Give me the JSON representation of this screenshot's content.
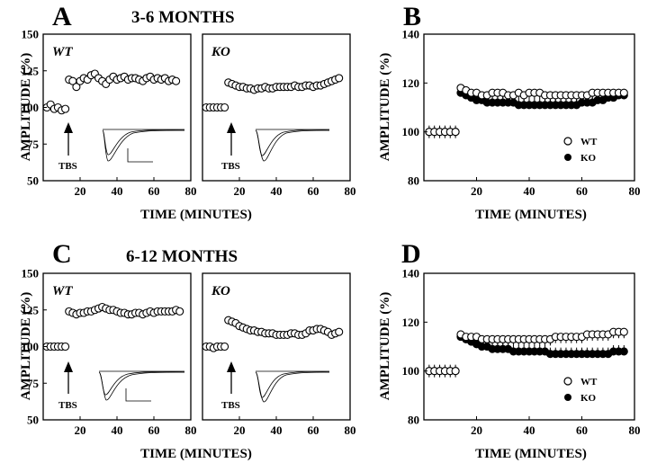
{
  "figure": {
    "panel_a": {
      "letter": "A",
      "title": "3-6 MONTHS"
    },
    "panel_b": {
      "letter": "B"
    },
    "panel_c": {
      "letter": "C",
      "title": "6-12 MONTHS"
    },
    "panel_d": {
      "letter": "D"
    },
    "genotype_labels": {
      "wt": "WT",
      "ko": "KO"
    },
    "stimulus_label": "TBS"
  },
  "chart_data": [
    {
      "id": "A-WT",
      "type": "scatter",
      "label": "WT",
      "xlabel": "TIME (MINUTES)",
      "ylabel": "AMPLITUDE (%)",
      "xlim": [
        0,
        80
      ],
      "ylim": [
        50,
        150
      ],
      "xticks": [
        20,
        40,
        60,
        80
      ],
      "yticks": [
        50,
        75,
        100,
        125,
        150
      ],
      "x": [
        2,
        4,
        6,
        8,
        10,
        12,
        14,
        16,
        18,
        20,
        22,
        24,
        26,
        28,
        30,
        32,
        34,
        36,
        38,
        40,
        42,
        44,
        46,
        48,
        50,
        52,
        54,
        56,
        58,
        60,
        62,
        64,
        66,
        68,
        70,
        72
      ],
      "y": [
        100,
        102,
        99,
        100,
        98,
        99,
        119,
        118,
        114,
        118,
        120,
        119,
        122,
        123,
        120,
        118,
        116,
        119,
        121,
        119,
        120,
        121,
        119,
        120,
        120,
        119,
        118,
        120,
        121,
        119,
        120,
        119,
        120,
        118,
        119,
        118
      ]
    },
    {
      "id": "A-KO",
      "type": "scatter",
      "label": "KO",
      "xlabel": "",
      "ylabel": "",
      "xlim": [
        0,
        80
      ],
      "ylim": [
        50,
        150
      ],
      "xticks": [
        20,
        40,
        60,
        80
      ],
      "yticks": [],
      "x": [
        2,
        4,
        6,
        8,
        10,
        12,
        14,
        16,
        18,
        20,
        22,
        24,
        26,
        28,
        30,
        32,
        34,
        36,
        38,
        40,
        42,
        44,
        46,
        48,
        50,
        52,
        54,
        56,
        58,
        60,
        62,
        64,
        66,
        68,
        70,
        72,
        74
      ],
      "y": [
        100,
        100,
        100,
        100,
        100,
        100,
        117,
        116,
        115,
        114,
        114,
        113,
        113,
        112,
        113,
        113,
        114,
        113,
        113,
        114,
        114,
        114,
        114,
        114,
        115,
        114,
        114,
        115,
        115,
        114,
        115,
        115,
        116,
        117,
        118,
        119,
        120
      ]
    },
    {
      "id": "B",
      "type": "scatter",
      "xlabel": "TIME (MINUTES)",
      "ylabel": "AMPLITUDE (%)",
      "xlim": [
        0,
        80
      ],
      "ylim": [
        80,
        140
      ],
      "xticks": [
        20,
        40,
        60,
        80
      ],
      "yticks": [
        80,
        100,
        120,
        140
      ],
      "series": [
        {
          "name": "KO",
          "marker": "filled",
          "x": [
            2,
            4,
            6,
            8,
            10,
            12,
            14,
            16,
            18,
            20,
            22,
            24,
            26,
            28,
            30,
            32,
            34,
            36,
            38,
            40,
            42,
            44,
            46,
            48,
            50,
            52,
            54,
            56,
            58,
            60,
            62,
            64,
            66,
            68,
            70,
            72,
            74,
            76
          ],
          "y": [
            100,
            100,
            100,
            100,
            100,
            100,
            116,
            115,
            114,
            113,
            113,
            112,
            112,
            112,
            112,
            112,
            112,
            111,
            111,
            111,
            111,
            111,
            111,
            111,
            111,
            111,
            111,
            111,
            111,
            112,
            112,
            112,
            113,
            113,
            114,
            114,
            115,
            115
          ]
        },
        {
          "name": "WT",
          "marker": "open",
          "x": [
            2,
            4,
            6,
            8,
            10,
            12,
            14,
            16,
            18,
            20,
            22,
            24,
            26,
            28,
            30,
            32,
            34,
            36,
            38,
            40,
            42,
            44,
            46,
            48,
            50,
            52,
            54,
            56,
            58,
            60,
            62,
            64,
            66,
            68,
            70,
            72,
            74,
            76
          ],
          "y": [
            100,
            100,
            100,
            100,
            100,
            100,
            118,
            117,
            116,
            116,
            115,
            115,
            116,
            116,
            116,
            115,
            115,
            116,
            115,
            116,
            116,
            116,
            115,
            115,
            115,
            115,
            115,
            115,
            115,
            115,
            115,
            116,
            116,
            116,
            116,
            116,
            116,
            116
          ]
        }
      ]
    },
    {
      "id": "C-WT",
      "type": "scatter",
      "label": "WT",
      "xlabel": "TIME (MINUTES)",
      "ylabel": "AMPLITUDE (%)",
      "xlim": [
        0,
        80
      ],
      "ylim": [
        50,
        150
      ],
      "xticks": [
        20,
        40,
        60,
        80
      ],
      "yticks": [
        50,
        75,
        100,
        125,
        150
      ],
      "x": [
        2,
        4,
        6,
        8,
        10,
        12,
        14,
        16,
        18,
        20,
        22,
        24,
        26,
        28,
        30,
        32,
        34,
        36,
        38,
        40,
        42,
        44,
        46,
        48,
        50,
        52,
        54,
        56,
        58,
        60,
        62,
        64,
        66,
        68,
        70,
        72,
        74
      ],
      "y": [
        100,
        100,
        100,
        100,
        100,
        100,
        124,
        123,
        122,
        123,
        123,
        124,
        124,
        125,
        126,
        127,
        126,
        125,
        125,
        124,
        123,
        123,
        122,
        122,
        123,
        123,
        122,
        123,
        124,
        123,
        124,
        124,
        124,
        124,
        124,
        125,
        124
      ]
    },
    {
      "id": "C-KO",
      "type": "scatter",
      "label": "KO",
      "xlabel": "",
      "ylabel": "",
      "xlim": [
        0,
        80
      ],
      "ylim": [
        50,
        150
      ],
      "xticks": [
        20,
        40,
        60,
        80
      ],
      "yticks": [],
      "x": [
        2,
        4,
        6,
        8,
        10,
        12,
        14,
        16,
        18,
        20,
        22,
        24,
        26,
        28,
        30,
        32,
        34,
        36,
        38,
        40,
        42,
        44,
        46,
        48,
        50,
        52,
        54,
        56,
        58,
        60,
        62,
        64,
        66,
        68,
        70,
        72,
        74
      ],
      "y": [
        100,
        100,
        99,
        100,
        100,
        100,
        118,
        117,
        116,
        114,
        113,
        112,
        111,
        111,
        110,
        110,
        109,
        109,
        109,
        108,
        108,
        108,
        108,
        109,
        109,
        108,
        108,
        109,
        111,
        111,
        112,
        112,
        111,
        110,
        108,
        109,
        110
      ]
    },
    {
      "id": "D",
      "type": "scatter",
      "xlabel": "TIME (MINUTES)",
      "ylabel": "AMPLITUDE (%)",
      "xlim": [
        0,
        80
      ],
      "ylim": [
        80,
        140
      ],
      "xticks": [
        20,
        40,
        60,
        80
      ],
      "yticks": [
        80,
        100,
        120,
        140
      ],
      "series": [
        {
          "name": "KO",
          "marker": "filled",
          "x": [
            2,
            4,
            6,
            8,
            10,
            12,
            14,
            16,
            18,
            20,
            22,
            24,
            26,
            28,
            30,
            32,
            34,
            36,
            38,
            40,
            42,
            44,
            46,
            48,
            50,
            52,
            54,
            56,
            58,
            60,
            62,
            64,
            66,
            68,
            70,
            72,
            74,
            76
          ],
          "y": [
            100,
            100,
            100,
            100,
            100,
            100,
            114,
            113,
            112,
            111,
            110,
            110,
            109,
            109,
            109,
            109,
            108,
            108,
            108,
            108,
            108,
            108,
            108,
            107,
            107,
            107,
            107,
            107,
            107,
            107,
            107,
            107,
            107,
            107,
            107,
            108,
            108,
            108
          ]
        },
        {
          "name": "WT",
          "marker": "open",
          "x": [
            2,
            4,
            6,
            8,
            10,
            12,
            14,
            16,
            18,
            20,
            22,
            24,
            26,
            28,
            30,
            32,
            34,
            36,
            38,
            40,
            42,
            44,
            46,
            48,
            50,
            52,
            54,
            56,
            58,
            60,
            62,
            64,
            66,
            68,
            70,
            72,
            74,
            76
          ],
          "y": [
            100,
            100,
            100,
            100,
            100,
            100,
            115,
            114,
            114,
            114,
            113,
            113,
            113,
            113,
            113,
            113,
            113,
            113,
            113,
            113,
            113,
            113,
            113,
            113,
            114,
            114,
            114,
            114,
            114,
            114,
            115,
            115,
            115,
            115,
            115,
            116,
            116,
            116
          ]
        }
      ]
    }
  ]
}
